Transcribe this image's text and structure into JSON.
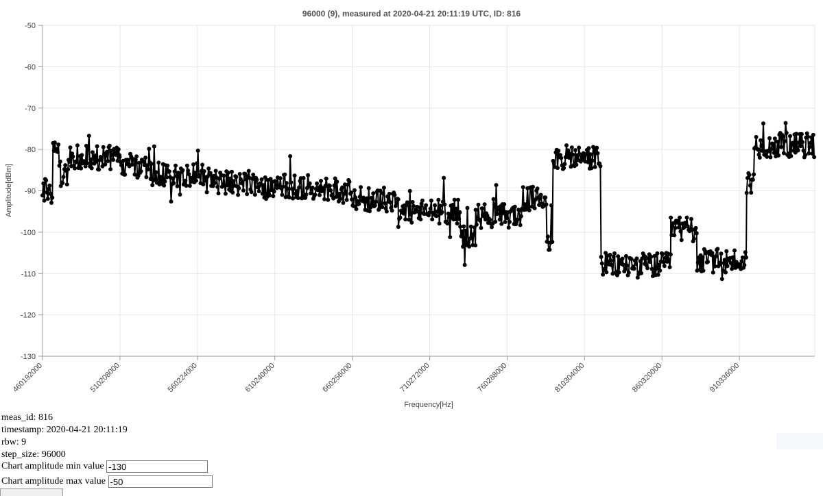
{
  "chart_data": {
    "type": "line",
    "title": "96000 (9), measured at 2020-04-21 20:11:19 UTC, ID: 816",
    "xlabel": "Frequency[Hz]",
    "ylabel": "Amplitude[dBm]",
    "ylim": [
      -130,
      -50
    ],
    "xlim": [
      460192000,
      959000000
    ],
    "x_ticks": [
      "460192000",
      "510208000",
      "560224000",
      "610240000",
      "660256000",
      "710272000",
      "760288000",
      "810304000",
      "860320000",
      "910336000"
    ],
    "y_ticks": [
      "-50",
      "-60",
      "-70",
      "-80",
      "-90",
      "-100",
      "-110",
      "-120",
      "-130"
    ],
    "grid": true,
    "legend": "none",
    "line_color": "#000000",
    "step_size": 96000,
    "series": [
      {
        "name": "",
        "segments": [
          {
            "x_start": 460192000,
            "x_end": 467000000,
            "y_mean": -90,
            "y_spread": 3
          },
          {
            "x_start": 467000000,
            "x_end": 472000000,
            "y_mean": -81,
            "y_spread": 3
          },
          {
            "x_start": 472000000,
            "x_end": 477000000,
            "y_mean": -87,
            "y_spread": 5
          },
          {
            "x_start": 477000000,
            "x_end": 510000000,
            "y_mean": -82,
            "y_spread": 3
          },
          {
            "x_start": 510000000,
            "x_end": 530000000,
            "y_mean": -84,
            "y_spread": 3
          },
          {
            "x_start": 530000000,
            "x_end": 560000000,
            "y_mean": -86,
            "y_spread": 3
          },
          {
            "x_start": 560000000,
            "x_end": 600000000,
            "y_mean": -88,
            "y_spread": 3
          },
          {
            "x_start": 600000000,
            "x_end": 640000000,
            "y_mean": -89,
            "y_spread": 3
          },
          {
            "x_start": 640000000,
            "x_end": 660000000,
            "y_mean": -90,
            "y_spread": 3
          },
          {
            "x_start": 660000000,
            "x_end": 690000000,
            "y_mean": -92,
            "y_spread": 3
          },
          {
            "x_start": 690000000,
            "x_end": 730000000,
            "y_mean": -95,
            "y_spread": 3
          },
          {
            "x_start": 730000000,
            "x_end": 740000000,
            "y_mean": -101,
            "y_spread": 3
          },
          {
            "x_start": 740000000,
            "x_end": 770000000,
            "y_mean": -96,
            "y_spread": 3
          },
          {
            "x_start": 770000000,
            "x_end": 786000000,
            "y_mean": -92,
            "y_spread": 3
          },
          {
            "x_start": 786000000,
            "x_end": 790000000,
            "y_mean": -100,
            "y_spread": 6
          },
          {
            "x_start": 790000000,
            "x_end": 821000000,
            "y_mean": -82,
            "y_spread": 3
          },
          {
            "x_start": 821000000,
            "x_end": 866000000,
            "y_mean": -108,
            "y_spread": 3
          },
          {
            "x_start": 866000000,
            "x_end": 883000000,
            "y_mean": -99,
            "y_spread": 3
          },
          {
            "x_start": 883000000,
            "x_end": 915000000,
            "y_mean": -107,
            "y_spread": 3
          },
          {
            "x_start": 915000000,
            "x_end": 920000000,
            "y_mean": -88,
            "y_spread": 3
          },
          {
            "x_start": 920000000,
            "x_end": 959000000,
            "y_mean": -79,
            "y_spread": 3
          }
        ]
      }
    ]
  },
  "info": {
    "meas_id": "meas_id: 816",
    "timestamp": "timestamp: 2020-04-21 20:11:19",
    "rbw": "rbw: 9",
    "step_size": "step_size: 96000",
    "min_label": "Chart amplitude min value",
    "min_value": "-130",
    "max_label": "Chart amplitude max value",
    "max_value": "-50"
  }
}
